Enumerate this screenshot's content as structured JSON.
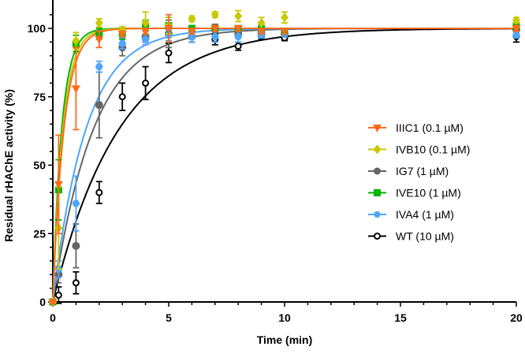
{
  "chart_data": {
    "type": "scatter",
    "title": "",
    "xlabel": "Time (min)",
    "ylabel": "Residual rHAChE activity (%)",
    "xlim": [
      0,
      20
    ],
    "ylim": [
      0,
      110
    ],
    "xticks": [
      0,
      5,
      10,
      15,
      20
    ],
    "yticks": [
      0,
      25,
      50,
      75,
      100
    ],
    "grid": false,
    "legend_position": "center-right",
    "x": [
      0,
      0.25,
      1,
      2,
      3,
      4,
      5,
      6,
      7,
      8,
      9,
      10,
      20
    ],
    "series": [
      {
        "name": "WT (10 µM)",
        "color": "#000000",
        "marker": "open-circle",
        "rate_k": 0.35,
        "values": [
          0,
          2.5,
          7,
          40,
          75,
          80,
          91,
          97,
          96,
          93.5,
          97,
          96.5,
          97
        ],
        "errors": [
          0.5,
          3,
          4,
          4,
          5,
          6,
          3.5,
          2,
          2,
          1.5,
          1,
          1,
          2
        ]
      },
      {
        "name": "IG7 (1 µM)",
        "color": "#666666",
        "marker": "circle",
        "rate_k": 0.57,
        "values": [
          0,
          10,
          20.5,
          72,
          93,
          97,
          98,
          97,
          99.5,
          98,
          98,
          98,
          99.5
        ],
        "errors": [
          0.5,
          3,
          8,
          12,
          3,
          2,
          5,
          2,
          2,
          1.5,
          1,
          1,
          1
        ]
      },
      {
        "name": "IVA4 (1 µM)",
        "color": "#4da6ff",
        "marker": "hexagon",
        "rate_k": 0.7,
        "values": [
          0,
          12,
          36,
          86,
          94.5,
          96,
          97.5,
          97,
          97,
          97,
          97.5,
          98,
          97.5
        ],
        "errors": [
          0.5,
          3,
          10,
          2,
          2,
          2,
          2,
          2,
          2,
          2,
          1,
          1,
          1
        ]
      },
      {
        "name": "IVE10 (1 µM)",
        "color": "#00b400",
        "marker": "square",
        "rate_k": 2.6,
        "values": [
          0,
          41,
          94.5,
          98,
          98,
          101,
          101,
          100,
          100,
          100,
          100,
          99,
          101
        ],
        "errors": [
          0.5,
          11,
          3,
          2,
          2,
          2,
          3,
          1,
          1,
          1,
          1,
          1,
          1
        ]
      },
      {
        "name": "IVB10 (0.1 µM)",
        "color": "#c8c800",
        "marker": "diamond",
        "rate_k": 2.3,
        "values": [
          0,
          27,
          95.5,
          102,
          99.5,
          102,
          101,
          103.5,
          105,
          104.5,
          102,
          104,
          103
        ],
        "errors": [
          0.5,
          15,
          3,
          1.5,
          1,
          4,
          3,
          1,
          1,
          2,
          2,
          2,
          1
        ]
      },
      {
        "name": "IIIC1 (0.1 µM)",
        "color": "#ff6a1a",
        "marker": "triangle-down",
        "rate_k": 2.1,
        "values": [
          0,
          43,
          78,
          96,
          98,
          99,
          100,
          99,
          100,
          100,
          99,
          99,
          100
        ],
        "errors": [
          0.5,
          18,
          15,
          3,
          1,
          1,
          5,
          1,
          1,
          1,
          1,
          1,
          1
        ]
      }
    ],
    "legend_order": [
      5,
      4,
      1,
      3,
      2,
      0
    ]
  }
}
